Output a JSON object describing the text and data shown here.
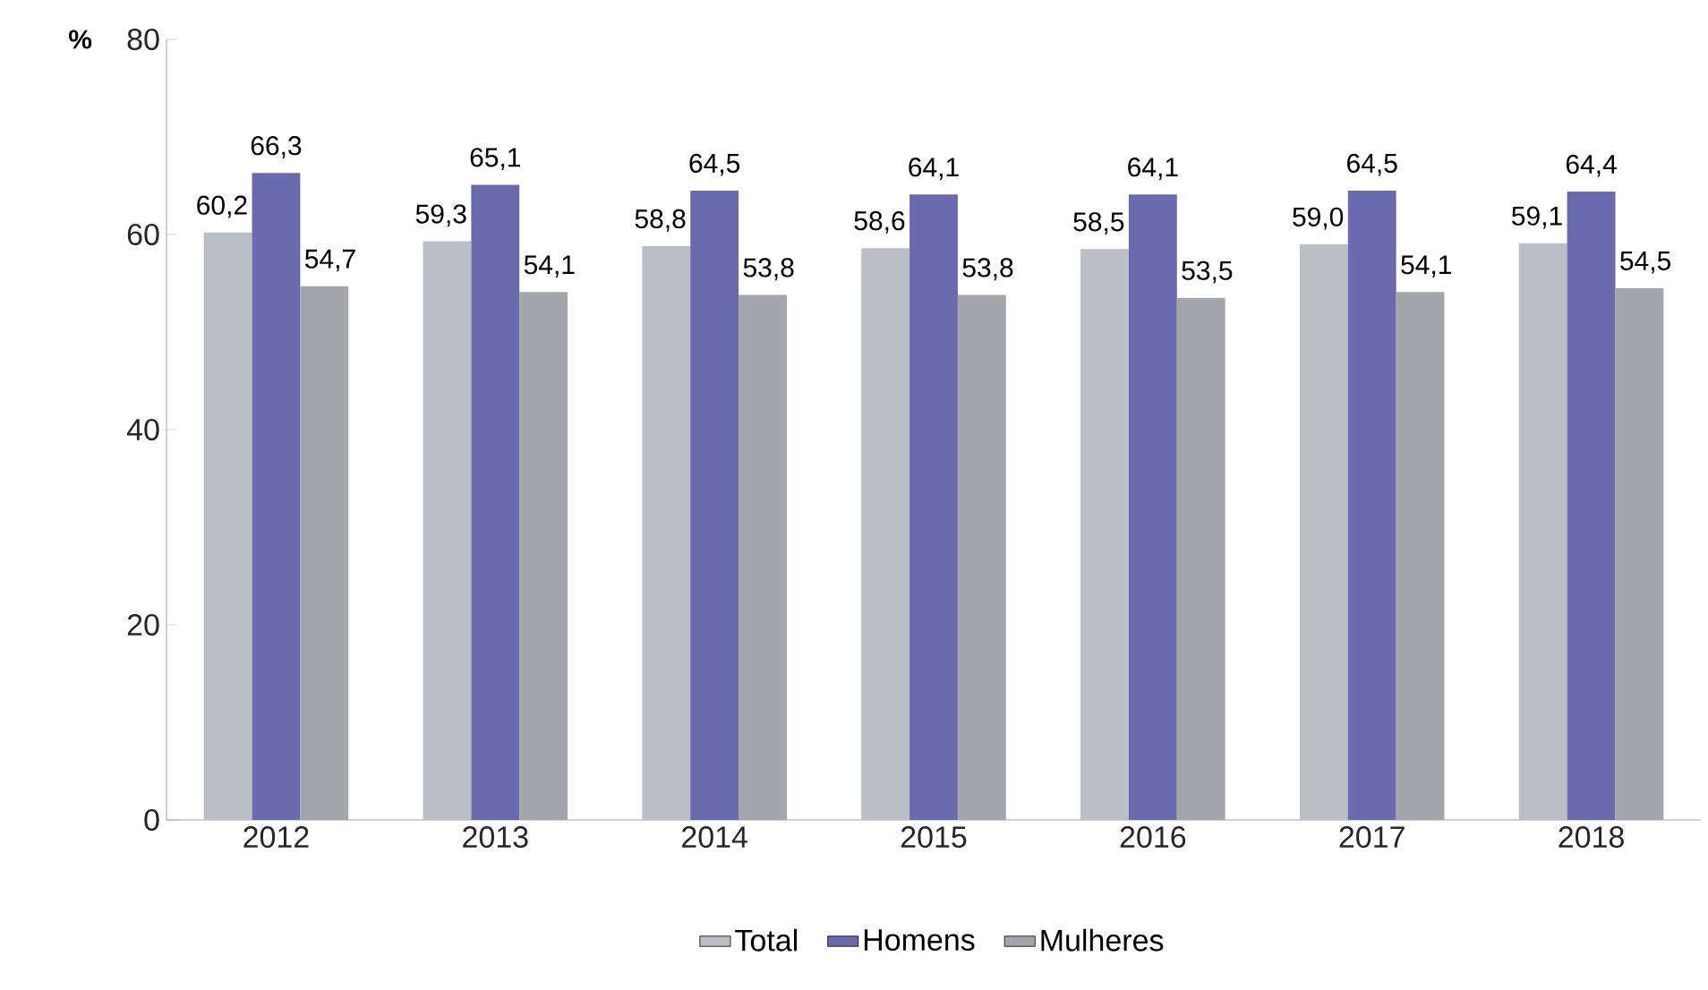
{
  "chart_data": {
    "type": "bar",
    "ylabel": "%",
    "categories": [
      "2012",
      "2013",
      "2014",
      "2015",
      "2016",
      "2017",
      "2018"
    ],
    "series": [
      {
        "name": "Total",
        "color": "#b9bfc5",
        "values": [
          60.2,
          59.3,
          58.8,
          58.6,
          58.5,
          59.0,
          59.1
        ],
        "value_labels": [
          "60,2",
          "59,3",
          "58,8",
          "58,6",
          "58,5",
          "59,0",
          "59,1"
        ]
      },
      {
        "name": "Homens",
        "color": "#6a6aae",
        "values": [
          66.3,
          65.1,
          64.5,
          64.1,
          64.1,
          64.5,
          64.4
        ],
        "value_labels": [
          "66,3",
          "65,1",
          "64,5",
          "64,1",
          "64,1",
          "64,5",
          "64,4"
        ]
      },
      {
        "name": "Mulheres",
        "color": "#a3a7ab",
        "values": [
          54.7,
          54.1,
          53.8,
          53.8,
          53.5,
          54.1,
          54.5
        ],
        "value_labels": [
          "54,7",
          "54,1",
          "53,8",
          "53,8",
          "53,5",
          "54,1",
          "54,5"
        ]
      }
    ],
    "ylim": [
      0,
      80
    ],
    "yticks": [
      0,
      20,
      40,
      60,
      80
    ],
    "grid": false,
    "legend": "bottom"
  }
}
